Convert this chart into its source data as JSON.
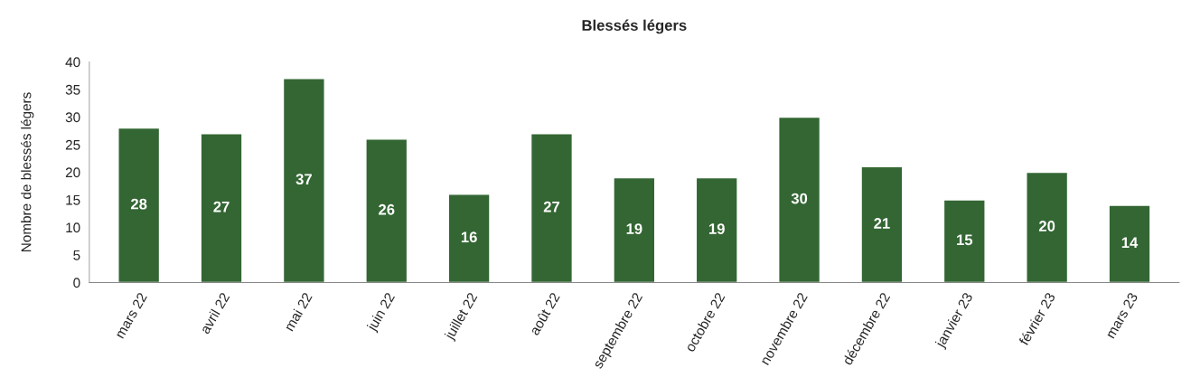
{
  "chart_data": {
    "type": "bar",
    "title": "Blessés légers",
    "ylabel": "Nombre de blessés légers",
    "categories": [
      "mars 22",
      "avril 22",
      "mai 22",
      "juin 22",
      "juillet 22",
      "août 22",
      "septembre 22",
      "octobre 22",
      "novembre 22",
      "décembre 22",
      "janvier 23",
      "février 23",
      "mars 23"
    ],
    "values": [
      28,
      27,
      37,
      26,
      16,
      27,
      19,
      19,
      30,
      21,
      15,
      20,
      14
    ],
    "color": "#336633",
    "ylim": [
      0,
      40
    ],
    "yticks": [
      0,
      5,
      10,
      15,
      20,
      25,
      30,
      35,
      40
    ],
    "data_labels": true
  }
}
